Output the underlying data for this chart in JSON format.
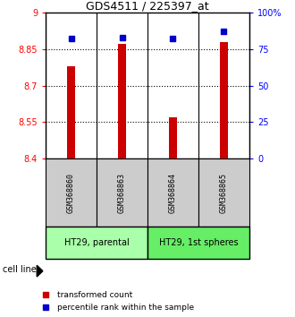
{
  "title": "GDS4511 / 225397_at",
  "samples": [
    "GSM368860",
    "GSM368863",
    "GSM368864",
    "GSM368865"
  ],
  "red_values": [
    8.78,
    8.87,
    8.57,
    8.88
  ],
  "blue_values": [
    0.82,
    0.83,
    0.82,
    0.87
  ],
  "ylim_left": [
    8.4,
    9.0
  ],
  "ylim_right": [
    0.0,
    1.0
  ],
  "yticks_left": [
    8.4,
    8.55,
    8.7,
    8.85,
    9.0
  ],
  "ytick_labels_left": [
    "8.4",
    "8.55",
    "8.7",
    "8.85",
    "9"
  ],
  "yticks_right": [
    0.0,
    0.25,
    0.5,
    0.75,
    1.0
  ],
  "ytick_labels_right": [
    "0",
    "25",
    "50",
    "75",
    "100%"
  ],
  "grid_yticks": [
    8.55,
    8.7,
    8.85
  ],
  "group1_label": "HT29, parental",
  "group2_label": "HT29, 1st spheres",
  "cell_line_label": "cell line",
  "legend1_label": "transformed count",
  "legend2_label": "percentile rank within the sample",
  "bar_color": "#cc0000",
  "dot_color": "#0000cc",
  "group1_bg": "#aaffaa",
  "group2_bg": "#66ee66",
  "sample_bg": "#cccccc",
  "base_value": 8.4,
  "bar_width": 0.15
}
